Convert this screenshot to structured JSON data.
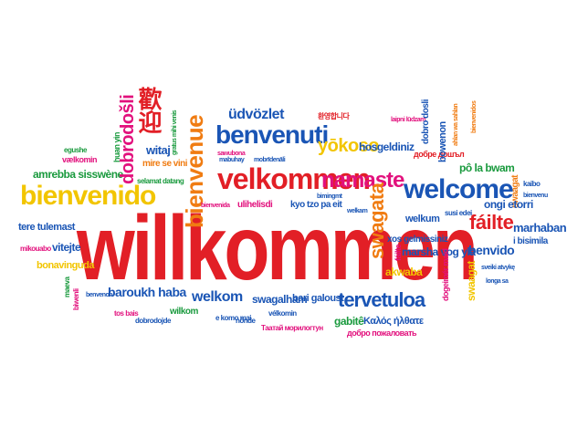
{
  "words": [
    {
      "text": "willkommen",
      "color": "#e21f26"
    },
    {
      "text": "bienvenido",
      "color": "#f2c500"
    },
    {
      "text": "velkommen",
      "color": "#e21f26"
    },
    {
      "text": "welcome",
      "color": "#1a55b5"
    },
    {
      "text": "benvenuti",
      "color": "#1a55b5"
    },
    {
      "text": "namaste",
      "color": "#e2117d"
    },
    {
      "text": "bienvenue",
      "color": "#f07c12"
    },
    {
      "text": "dobrodošli",
      "color": "#e2117d"
    },
    {
      "text": "歡迎",
      "color": "#e21f26"
    },
    {
      "text": "üdvözlet",
      "color": "#1a55b5"
    },
    {
      "text": "yōkoso",
      "color": "#f2c500"
    },
    {
      "text": "hosgeldiniz",
      "color": "#1a55b5"
    },
    {
      "text": "swagata",
      "color": "#f07c12"
    },
    {
      "text": "tervetuloa",
      "color": "#1a55b5"
    },
    {
      "text": "fáilte",
      "color": "#e21f26"
    },
    {
      "text": "benvido",
      "color": "#1a55b5"
    },
    {
      "text": "marhaban",
      "color": "#1a55b5"
    },
    {
      "text": "baroukh haba",
      "color": "#1a55b5"
    },
    {
      "text": "welkom",
      "color": "#1a55b5"
    },
    {
      "text": "swagalham",
      "color": "#1a55b5"
    },
    {
      "text": "bari galoust",
      "color": "#1a55b5"
    },
    {
      "text": "Καλός ήλθατε",
      "color": "#1a55b5"
    },
    {
      "text": "добро пожаловать",
      "color": "#e2117d"
    },
    {
      "text": "Таатай морилогтун",
      "color": "#e2117d"
    },
    {
      "text": "tere tulemast",
      "color": "#1a55b5"
    },
    {
      "text": "amrebba sisswène",
      "color": "#1a9a3e"
    },
    {
      "text": "vælkomin",
      "color": "#e2117d"
    },
    {
      "text": "egushe",
      "color": "#1a9a3e"
    },
    {
      "text": "witaj",
      "color": "#1a55b5"
    },
    {
      "text": "mire se vini",
      "color": "#f07c12"
    },
    {
      "text": "selamat datang",
      "color": "#1a9a3e"
    },
    {
      "text": "vitejte",
      "color": "#1a55b5"
    },
    {
      "text": "mikouabo",
      "color": "#e2117d"
    },
    {
      "text": "bonavinguda",
      "color": "#f2c500"
    },
    {
      "text": "kyo tzo pa eit",
      "color": "#1a55b5"
    },
    {
      "text": "welkum",
      "color": "#1a55b5"
    },
    {
      "text": "marsha vog yla",
      "color": "#1a55b5"
    },
    {
      "text": "xos gelmissiniz",
      "color": "#1a55b5"
    },
    {
      "text": "akwaba",
      "color": "#f2c500"
    },
    {
      "text": "dobro došli",
      "color": "#1a55b5"
    },
    {
      "text": "bowenon",
      "color": "#1a55b5"
    },
    {
      "text": "pô la bwam",
      "color": "#1a9a3e"
    },
    {
      "text": "ongi etorri",
      "color": "#1a55b5"
    },
    {
      "text": "i bisimila",
      "color": "#1a55b5"
    },
    {
      "text": "swaagat",
      "color": "#f07c12"
    },
    {
      "text": "sveiki atvykę",
      "color": "#1a55b5"
    },
    {
      "text": "longa sa",
      "color": "#1a55b5"
    },
    {
      "text": "kaibo",
      "color": "#1a55b5"
    },
    {
      "text": "dobredošli",
      "color": "#1a55b5"
    },
    {
      "text": "gabitê",
      "color": "#1a9a3e"
    },
    {
      "text": "dogeimér maid",
      "color": "#e2117d"
    },
    {
      "text": "tos bais",
      "color": "#e2117d"
    },
    {
      "text": "dobrodojde",
      "color": "#1a55b5"
    },
    {
      "text": "benvenon",
      "color": "#1a55b5"
    },
    {
      "text": "maeva",
      "color": "#1a9a3e"
    },
    {
      "text": "biwenli",
      "color": "#e2117d"
    },
    {
      "text": "wilkom",
      "color": "#1a9a3e"
    },
    {
      "text": "bienvenu",
      "color": "#1a55b5"
    },
    {
      "text": "huan yin",
      "color": "#1a9a3e"
    },
    {
      "text": "mabuhay",
      "color": "#1a55b5"
    },
    {
      "text": "susi edei",
      "color": "#1a55b5"
    },
    {
      "text": "nōnde",
      "color": "#1a55b5"
    },
    {
      "text": "환영합니다",
      "color": "#e21f26"
    },
    {
      "text": "laipni lūdzam",
      "color": "#e2117d"
    },
    {
      "text": "добре дошъл",
      "color": "#e21f26"
    },
    {
      "text": "dobro dosli",
      "color": "#1a55b5"
    },
    {
      "text": "ahlan wa sahlan",
      "color": "#f07c12"
    },
    {
      "text": "bienvenidos",
      "color": "#f07c12"
    },
    {
      "text": "e komo mai",
      "color": "#1a55b5"
    },
    {
      "text": "bimingmt",
      "color": "#1a55b5"
    },
    {
      "text": "welkam",
      "color": "#1a55b5"
    },
    {
      "text": "mobrīdenāli",
      "color": "#1a55b5"
    },
    {
      "text": "ulihelisdi",
      "color": "#e2117d"
    },
    {
      "text": "gratus mihi venis",
      "color": "#1a9a3e"
    },
    {
      "text": "sawubona",
      "color": "#e2117d"
    },
    {
      "text": "vélkomin",
      "color": "#1a55b5"
    },
    {
      "text": "bienvenida",
      "color": "#e2117d"
    }
  ]
}
